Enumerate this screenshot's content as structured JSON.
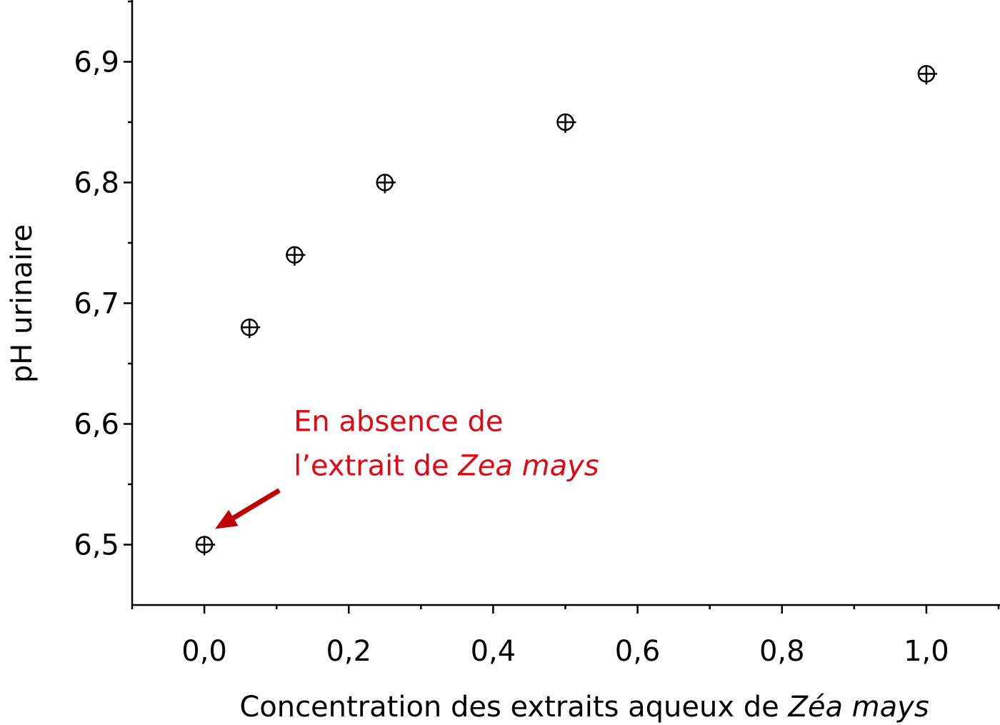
{
  "chart_data": {
    "type": "scatter",
    "xlabel": [
      {
        "text": "Concentration des extraits aqueux de ",
        "italic": false
      },
      {
        "text": "Zéa mays",
        "italic": true
      }
    ],
    "ylabel": "pH urinaire",
    "x": [
      0,
      0.0625,
      0.125,
      0.25,
      0.5,
      1.0
    ],
    "values": [
      6.5,
      6.68,
      6.74,
      6.8,
      6.85,
      6.89
    ],
    "color": "#000000",
    "xlim": [
      -0.1,
      1.1
    ],
    "ylim": [
      6.45,
      6.95
    ],
    "xticks": [
      {
        "value": 0,
        "label": "0,0"
      },
      {
        "value": 0.2,
        "label": "0,2"
      },
      {
        "value": 0.4,
        "label": "0,4"
      },
      {
        "value": 0.6,
        "label": "0,6"
      },
      {
        "value": 0.8,
        "label": "0,8"
      },
      {
        "value": 1.0,
        "label": "1,0"
      }
    ],
    "xminorticks": [
      -0.1,
      0.1,
      0.3,
      0.5,
      0.7,
      0.9,
      1.1
    ],
    "yticks": [
      {
        "value": 6.5,
        "label": "6,5"
      },
      {
        "value": 6.6,
        "label": "6,6"
      },
      {
        "value": 6.7,
        "label": "6,7"
      },
      {
        "value": 6.8,
        "label": "6,8"
      },
      {
        "value": 6.9,
        "label": "6,9"
      }
    ],
    "yminorticks": [
      6.55,
      6.65,
      6.75,
      6.85,
      6.95
    ],
    "annotation": {
      "lines": [
        [
          {
            "text": "En absence de",
            "italic": false
          }
        ],
        [
          {
            "text": "l’extrait de ",
            "italic": false
          },
          {
            "text": "Zea mays",
            "italic": true
          }
        ]
      ],
      "color": "#e30613",
      "arrow_color": "#c00000"
    }
  }
}
